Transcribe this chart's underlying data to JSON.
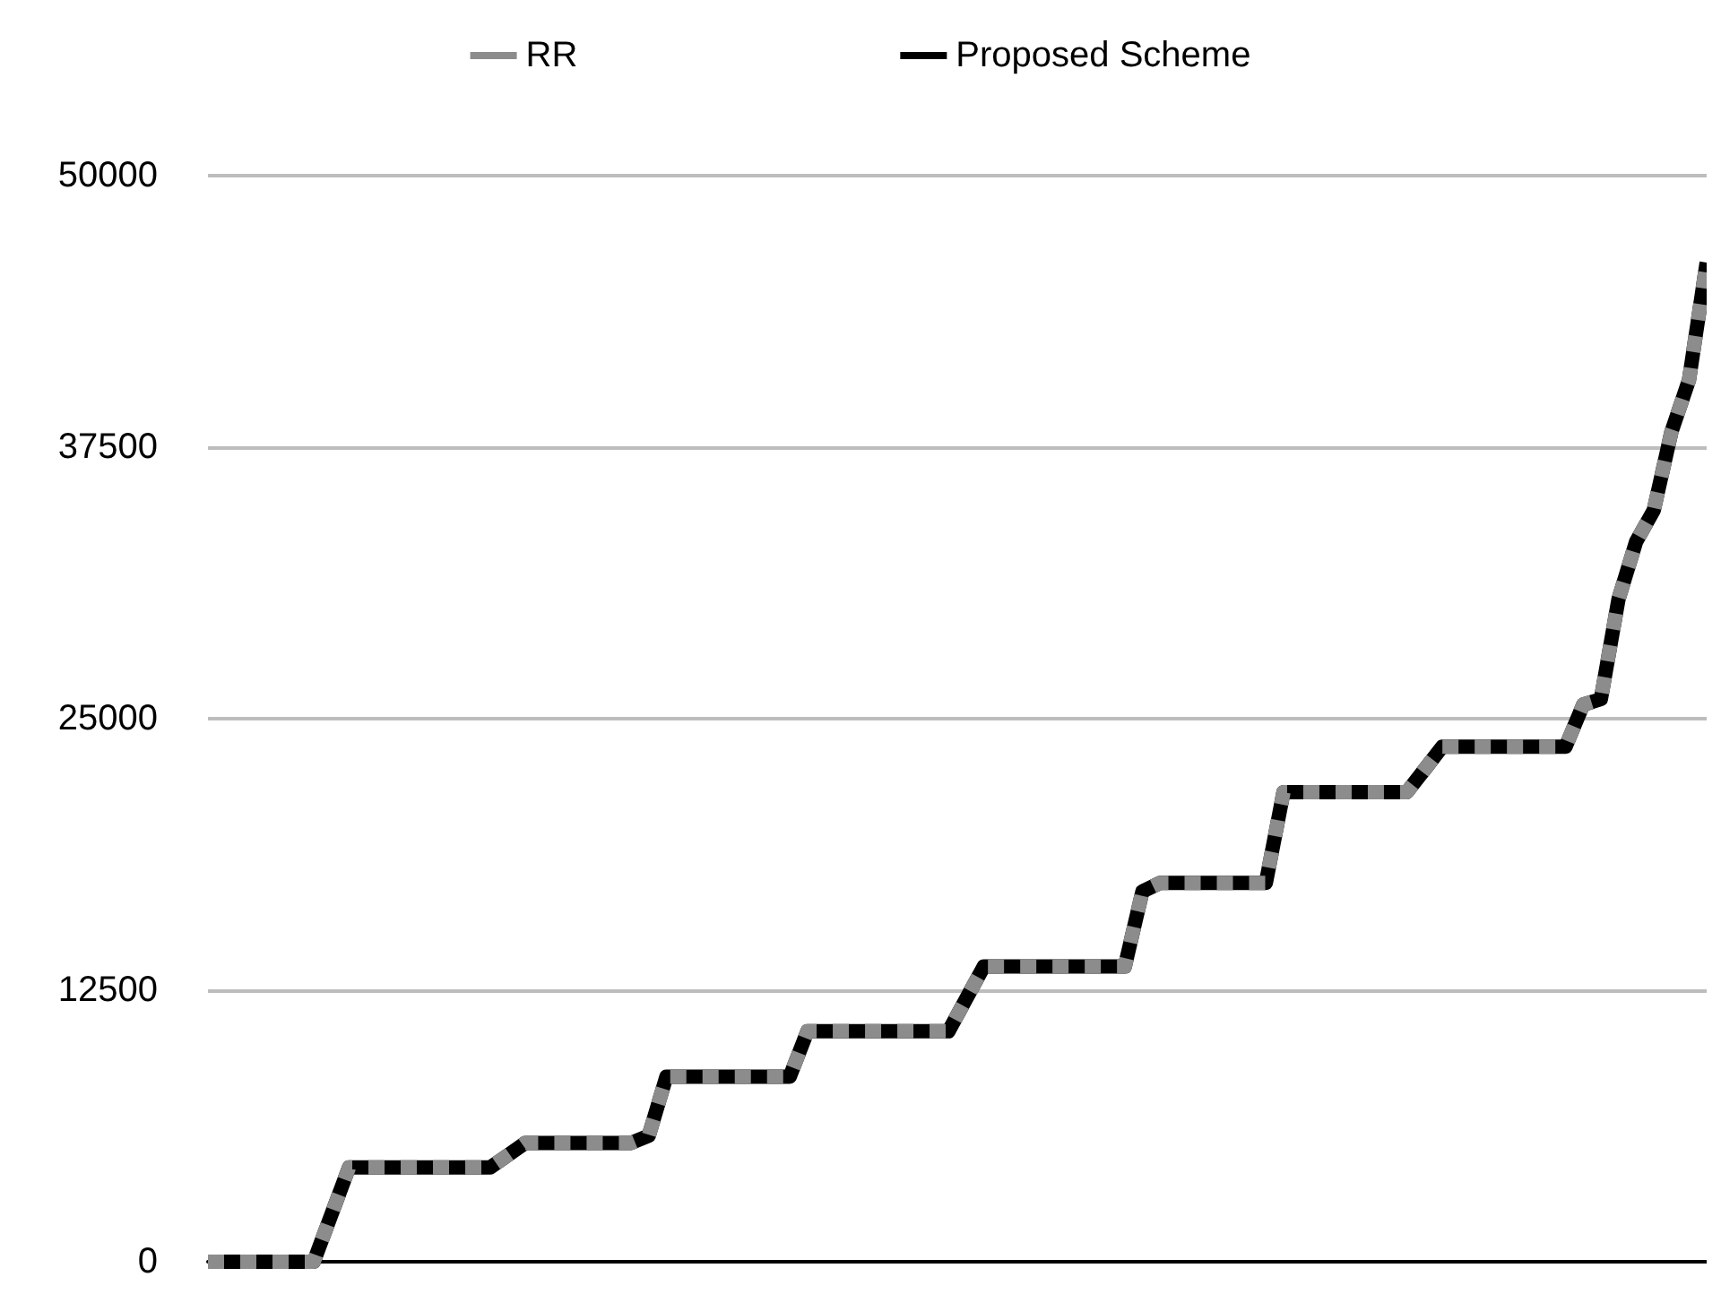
{
  "chart_data": {
    "type": "line",
    "categories": [
      null,
      null,
      null,
      null,
      null,
      null,
      null,
      null,
      null,
      null,
      null,
      null,
      null,
      null,
      null,
      null,
      null,
      null,
      null,
      null,
      null,
      null,
      null,
      null,
      null,
      null,
      null,
      null,
      null,
      null,
      null,
      null,
      null,
      null,
      null,
      null,
      null,
      null,
      null,
      null,
      null,
      null,
      null,
      null,
      null,
      null,
      null,
      null,
      null,
      null,
      null,
      null,
      null,
      null,
      null,
      null,
      null,
      null,
      null,
      null,
      null,
      null,
      null,
      null,
      null,
      null,
      null,
      null,
      null,
      null,
      null,
      null,
      null,
      null,
      null,
      null,
      null,
      null,
      null,
      null,
      null,
      null,
      null,
      null,
      null,
      null
    ],
    "series": [
      {
        "name": "RR",
        "color": "#8c8c8c",
        "line_style": "dashed",
        "values": [
          0,
          0,
          0,
          0,
          0,
          0,
          0,
          2170,
          4340,
          4340,
          4340,
          4340,
          4340,
          4340,
          4340,
          4340,
          4340,
          4900,
          5470,
          5470,
          5470,
          5470,
          5470,
          5470,
          5470,
          5800,
          8520,
          8520,
          8520,
          8520,
          8520,
          8520,
          8520,
          8520,
          10610,
          10610,
          10610,
          10610,
          10610,
          10610,
          10610,
          10610,
          10610,
          12100,
          13590,
          13590,
          13590,
          13590,
          13590,
          13590,
          13590,
          13590,
          13590,
          17050,
          17440,
          17440,
          17440,
          17440,
          17440,
          17440,
          17440,
          21620,
          21620,
          21620,
          21620,
          21620,
          21620,
          21620,
          21620,
          22660,
          23710,
          23710,
          23710,
          23710,
          23710,
          23710,
          23710,
          23710,
          25650,
          25900,
          30500,
          33150,
          34600,
          38200,
          40600,
          46000
        ]
      },
      {
        "name": "Proposed Scheme",
        "color": "#000000",
        "line_style": "solid",
        "values": [
          0,
          0,
          0,
          0,
          0,
          0,
          0,
          2170,
          4340,
          4340,
          4340,
          4340,
          4340,
          4340,
          4340,
          4340,
          4340,
          4900,
          5470,
          5470,
          5470,
          5470,
          5470,
          5470,
          5470,
          5800,
          8520,
          8520,
          8520,
          8520,
          8520,
          8520,
          8520,
          8520,
          10610,
          10610,
          10610,
          10610,
          10610,
          10610,
          10610,
          10610,
          10610,
          12100,
          13590,
          13590,
          13590,
          13590,
          13590,
          13590,
          13590,
          13590,
          13590,
          17050,
          17440,
          17440,
          17440,
          17440,
          17440,
          17440,
          17440,
          21620,
          21620,
          21620,
          21620,
          21620,
          21620,
          21620,
          21620,
          22660,
          23710,
          23710,
          23710,
          23710,
          23710,
          23710,
          23710,
          23710,
          25650,
          25900,
          30500,
          33150,
          34600,
          38200,
          40600,
          46000
        ]
      }
    ],
    "ylim": [
      0,
      50000
    ],
    "yticks": [
      0,
      12500,
      25000,
      37500,
      50000
    ],
    "grid": "y",
    "legend": "top",
    "marker": "none",
    "tick_labels": "y"
  }
}
